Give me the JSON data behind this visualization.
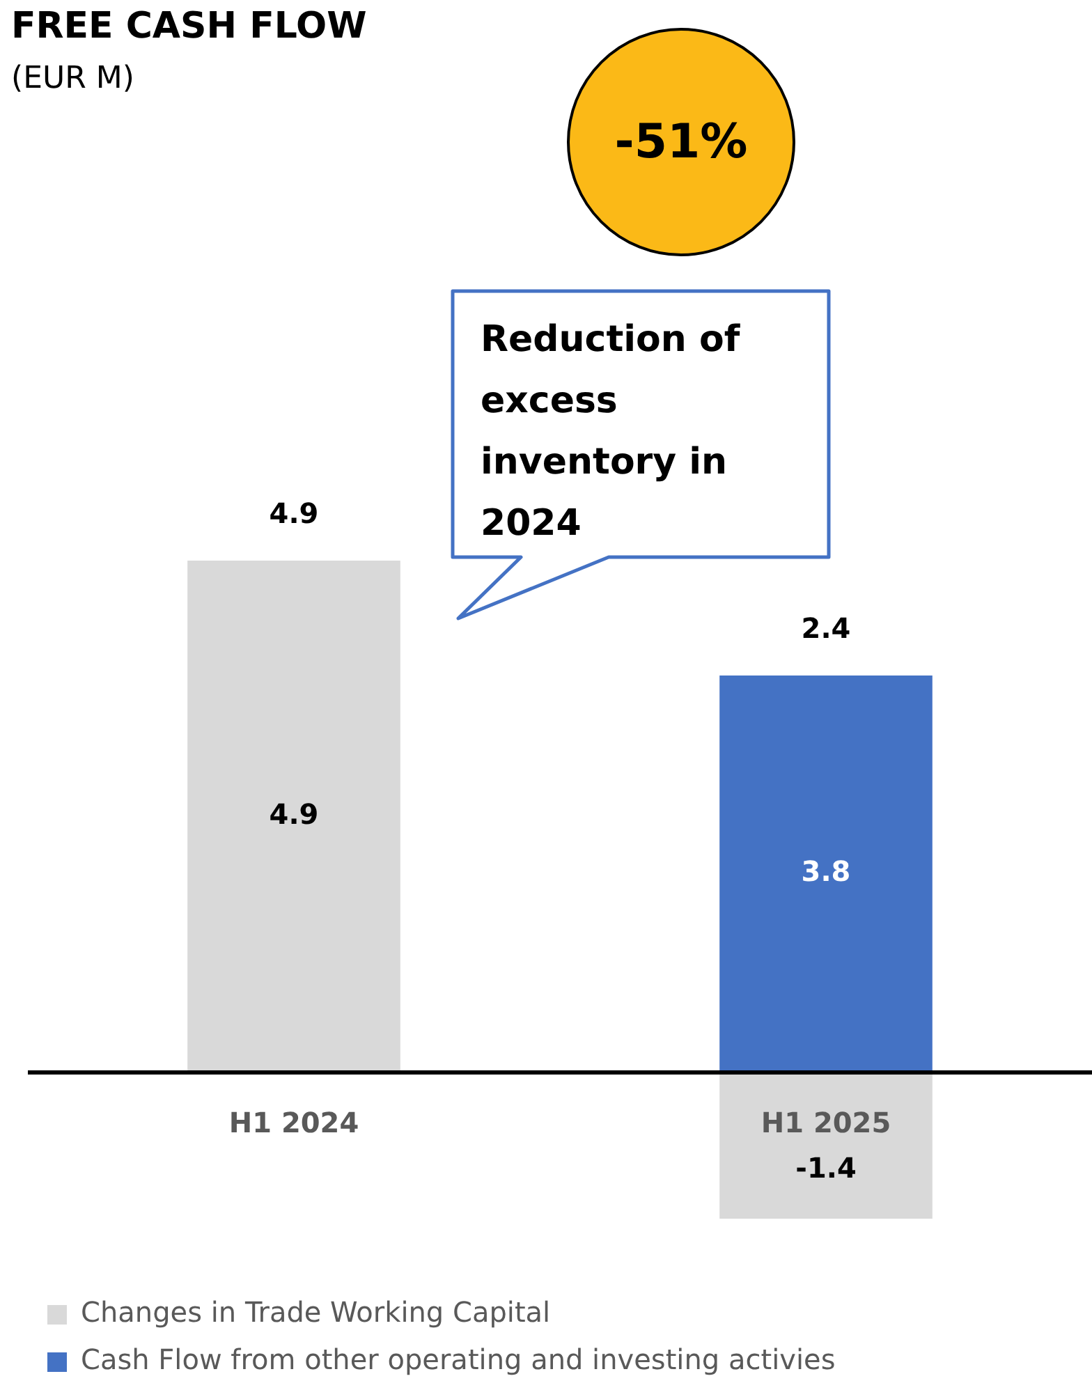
{
  "chart_data": {
    "type": "bar",
    "title": "FREE CASH FLOW",
    "subtitle": "(EUR M)",
    "categories": [
      "H1 2024",
      "H1 2025"
    ],
    "stacked": true,
    "data_labels": true,
    "totals": [
      "4.9",
      "2.4"
    ],
    "legend": "bottom",
    "grid": false,
    "series": [
      {
        "name": "Changes in Trade Working Capital",
        "color": "#d9d9d9",
        "values": [
          4.9,
          -1.4
        ]
      },
      {
        "name": "Cash Flow from other operating and investing activies",
        "color": "#4472c4",
        "values": [
          null,
          3.8
        ]
      }
    ],
    "annotations": [
      "-51%",
      "Reduction of excess inventory in 2024"
    ]
  }
}
